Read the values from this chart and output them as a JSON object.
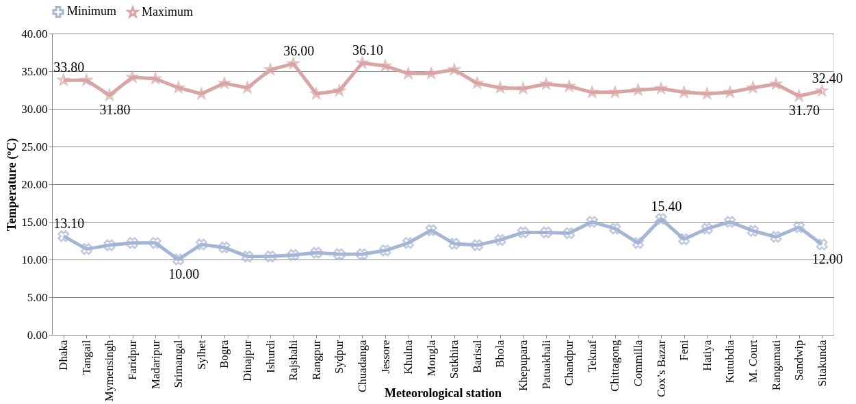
{
  "chart_data": {
    "type": "line",
    "xlabel": "Meteorological station",
    "ylabel": "Temperature (ºC)",
    "categories": [
      "Dhaka",
      "Tangail",
      "Mymensingh",
      "Faridpur",
      "Madaripur",
      "Srimangal",
      "Sylhet",
      "Bogra",
      "Dinajpur",
      "Ishurdi",
      "Rajshahi",
      "Rangpur",
      "Sydpur",
      "Chuadanga",
      "Jessore",
      "Khulna",
      "Mongla",
      "Satkhira",
      "Barisal",
      "Bhola",
      "Khepupara",
      "Patuakhali",
      "Chandpur",
      "Teknaf",
      "Chittagong",
      "Commilla",
      "Cox’s Bazar",
      "Feni",
      "Hatiya",
      "Kutubdia",
      "M. Court",
      "Rangamati",
      "Sandwip",
      "Sitakunda"
    ],
    "series": [
      {
        "name": "Minimum",
        "color": "#a5b5d6",
        "marker": "cross",
        "values": [
          13.1,
          11.4,
          11.9,
          12.2,
          12.2,
          10.0,
          12.0,
          11.6,
          10.4,
          10.4,
          10.6,
          10.9,
          10.7,
          10.7,
          11.2,
          12.2,
          13.9,
          12.1,
          11.9,
          12.6,
          13.6,
          13.6,
          13.5,
          15.0,
          14.1,
          12.2,
          15.4,
          12.7,
          14.1,
          15.0,
          13.8,
          13.0,
          14.3,
          12.0
        ],
        "value_labels": [
          "13.10",
          null,
          null,
          null,
          null,
          "10.00",
          null,
          null,
          null,
          null,
          null,
          null,
          null,
          null,
          null,
          null,
          null,
          null,
          null,
          null,
          null,
          null,
          null,
          null,
          null,
          null,
          "15.40",
          null,
          null,
          null,
          null,
          null,
          null,
          "12.00"
        ]
      },
      {
        "name": "Maximum",
        "color": "#d8a4a4",
        "marker": "star",
        "values": [
          33.8,
          33.8,
          31.8,
          34.2,
          34.0,
          32.8,
          32.0,
          33.4,
          32.8,
          35.2,
          36.0,
          32.0,
          32.4,
          36.1,
          35.7,
          34.7,
          34.7,
          35.2,
          33.4,
          32.8,
          32.7,
          33.3,
          33.0,
          32.2,
          32.2,
          32.5,
          32.7,
          32.2,
          32.0,
          32.2,
          32.8,
          33.3,
          31.7,
          32.4
        ],
        "value_labels": [
          "33.80",
          null,
          "31.80",
          null,
          null,
          null,
          null,
          null,
          null,
          null,
          "36.00",
          null,
          null,
          "36.10",
          null,
          null,
          null,
          null,
          null,
          null,
          null,
          null,
          null,
          null,
          null,
          null,
          null,
          null,
          null,
          null,
          null,
          null,
          "31.70",
          "32.40"
        ]
      }
    ],
    "ylim": [
      0,
      40
    ],
    "yticks": [
      {
        "value": 0,
        "label": "0.00"
      },
      {
        "value": 5,
        "label": "5.00"
      },
      {
        "value": 10,
        "label": "10.00"
      },
      {
        "value": 15,
        "label": "15.00"
      },
      {
        "value": 20,
        "label": "20.00"
      },
      {
        "value": 25,
        "label": "25.00"
      },
      {
        "value": 30,
        "label": "30.00"
      },
      {
        "value": 35,
        "label": "35.00"
      },
      {
        "value": 40,
        "label": "40.00"
      }
    ],
    "grid": "y",
    "legend": "top",
    "line_style": "solid"
  }
}
